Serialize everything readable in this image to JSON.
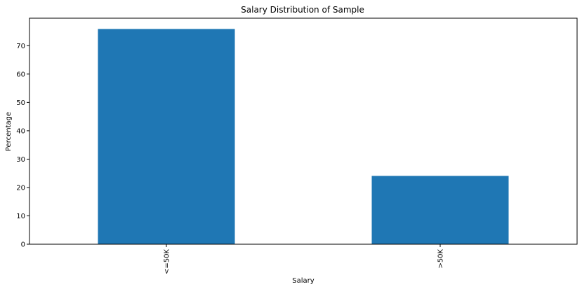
{
  "chart_data": {
    "type": "bar",
    "title": "Salary Distribution of Sample",
    "xlabel": "Salary",
    "ylabel": "Percentage",
    "categories": [
      "<=50K",
      ">50K"
    ],
    "values": [
      75.9,
      24.1
    ],
    "ylim": [
      0,
      79.7
    ],
    "yticks": [
      0,
      10,
      20,
      30,
      40,
      50,
      60,
      70
    ],
    "ytick_labels": [
      "0",
      "10",
      "20",
      "30",
      "40",
      "50",
      "60",
      "70"
    ],
    "bar_color": "#1f77b4",
    "grid": false,
    "legend": "none"
  }
}
